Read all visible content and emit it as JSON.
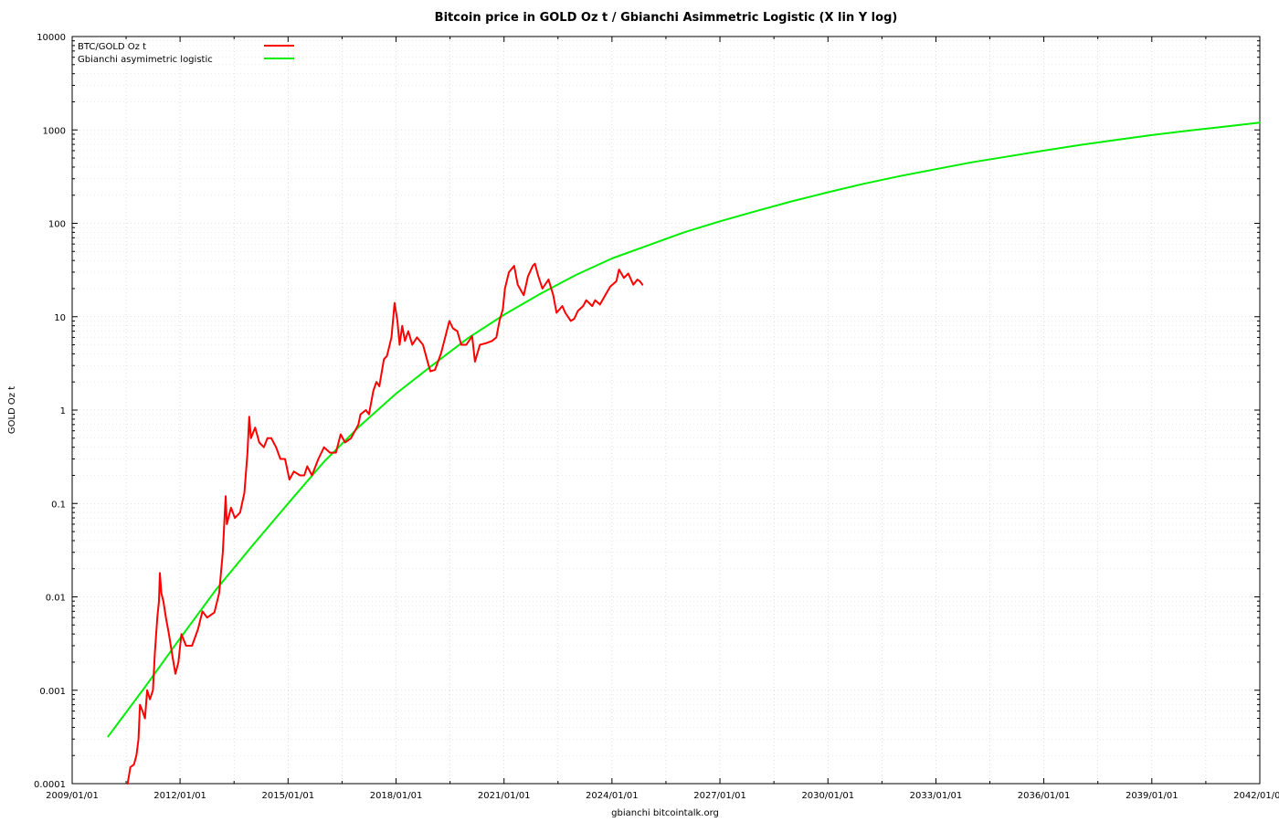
{
  "chart_data": {
    "type": "line",
    "title": "Bitcoin price in GOLD Oz t / Gbianchi Asimmetric Logistic (X lin Y log)",
    "xlabel": "gbianchi bitcointalk.org",
    "ylabel": "GOLD Oz t",
    "y_scale": "log",
    "ylim": [
      0.0001,
      10000
    ],
    "xlim": [
      "2009-01-01",
      "2042-01-01"
    ],
    "grid": true,
    "legend_position": "top-left",
    "x_ticks": [
      "2009/01/01",
      "2012/01/01",
      "2015/01/01",
      "2018/01/01",
      "2021/01/01",
      "2024/01/01",
      "2027/01/01",
      "2030/01/01",
      "2033/01/01",
      "2036/01/01",
      "2039/01/01",
      "2042/01/01"
    ],
    "y_ticks": [
      "0.0001",
      "0.001",
      "0.01",
      "0.1",
      "1",
      "10",
      "100",
      "1000",
      "10000"
    ],
    "series": [
      {
        "name": "BTC/GOLD Oz t",
        "color": "#ff0000",
        "points": [
          [
            "2010-07-18",
            0.0001
          ],
          [
            "2010-08-15",
            0.00015
          ],
          [
            "2010-09-20",
            0.00016
          ],
          [
            "2010-10-15",
            0.0002
          ],
          [
            "2010-11-05",
            0.0003
          ],
          [
            "2010-11-20",
            0.0007
          ],
          [
            "2010-12-15",
            0.0006
          ],
          [
            "2011-01-10",
            0.0005
          ],
          [
            "2011-02-01",
            0.001
          ],
          [
            "2011-03-01",
            0.0008
          ],
          [
            "2011-04-01",
            0.001
          ],
          [
            "2011-04-20",
            0.0025
          ],
          [
            "2011-05-15",
            0.006
          ],
          [
            "2011-06-01",
            0.009
          ],
          [
            "2011-06-10",
            0.018
          ],
          [
            "2011-06-25",
            0.011
          ],
          [
            "2011-07-15",
            0.009
          ],
          [
            "2011-08-10",
            0.006
          ],
          [
            "2011-09-10",
            0.004
          ],
          [
            "2011-10-10",
            0.0025
          ],
          [
            "2011-11-15",
            0.0015
          ],
          [
            "2011-12-15",
            0.002
          ],
          [
            "2012-01-15",
            0.004
          ],
          [
            "2012-03-01",
            0.003
          ],
          [
            "2012-05-01",
            0.003
          ],
          [
            "2012-07-01",
            0.0045
          ],
          [
            "2012-08-15",
            0.007
          ],
          [
            "2012-10-01",
            0.006
          ],
          [
            "2012-12-15",
            0.0068
          ],
          [
            "2013-02-01",
            0.011
          ],
          [
            "2013-03-10",
            0.03
          ],
          [
            "2013-04-08",
            0.12
          ],
          [
            "2013-04-20",
            0.06
          ],
          [
            "2013-06-01",
            0.09
          ],
          [
            "2013-07-10",
            0.07
          ],
          [
            "2013-09-01",
            0.08
          ],
          [
            "2013-10-15",
            0.13
          ],
          [
            "2013-11-15",
            0.35
          ],
          [
            "2013-12-03",
            0.85
          ],
          [
            "2013-12-20",
            0.5
          ],
          [
            "2014-02-01",
            0.65
          ],
          [
            "2014-03-15",
            0.45
          ],
          [
            "2014-05-01",
            0.4
          ],
          [
            "2014-06-05",
            0.5
          ],
          [
            "2014-07-15",
            0.5
          ],
          [
            "2014-09-01",
            0.4
          ],
          [
            "2014-10-15",
            0.3
          ],
          [
            "2014-12-01",
            0.3
          ],
          [
            "2015-01-15",
            0.18
          ],
          [
            "2015-03-01",
            0.22
          ],
          [
            "2015-05-01",
            0.2
          ],
          [
            "2015-06-15",
            0.2
          ],
          [
            "2015-07-15",
            0.25
          ],
          [
            "2015-09-01",
            0.2
          ],
          [
            "2015-11-05",
            0.3
          ],
          [
            "2016-01-01",
            0.4
          ],
          [
            "2016-03-01",
            0.35
          ],
          [
            "2016-05-01",
            0.35
          ],
          [
            "2016-06-18",
            0.55
          ],
          [
            "2016-08-01",
            0.45
          ],
          [
            "2016-10-01",
            0.5
          ],
          [
            "2016-12-15",
            0.7
          ],
          [
            "2017-01-05",
            0.9
          ],
          [
            "2017-03-01",
            1.0
          ],
          [
            "2017-04-01",
            0.9
          ],
          [
            "2017-05-15",
            1.6
          ],
          [
            "2017-06-15",
            2.0
          ],
          [
            "2017-07-15",
            1.8
          ],
          [
            "2017-08-30",
            3.5
          ],
          [
            "2017-10-01",
            3.8
          ],
          [
            "2017-11-15",
            6.0
          ],
          [
            "2017-12-17",
            14.0
          ],
          [
            "2018-01-15",
            9.0
          ],
          [
            "2018-02-06",
            5.0
          ],
          [
            "2018-03-05",
            8.0
          ],
          [
            "2018-04-01",
            5.5
          ],
          [
            "2018-05-05",
            7.0
          ],
          [
            "2018-06-15",
            5.0
          ],
          [
            "2018-08-01",
            6.0
          ],
          [
            "2018-10-01",
            5.0
          ],
          [
            "2018-11-20",
            3.2
          ],
          [
            "2018-12-15",
            2.6
          ],
          [
            "2019-02-01",
            2.7
          ],
          [
            "2019-04-01",
            4.0
          ],
          [
            "2019-05-15",
            6.0
          ],
          [
            "2019-06-26",
            9.0
          ],
          [
            "2019-08-01",
            7.5
          ],
          [
            "2019-09-15",
            7.0
          ],
          [
            "2019-10-25",
            5.0
          ],
          [
            "2019-12-15",
            5.0
          ],
          [
            "2020-02-12",
            6.2
          ],
          [
            "2020-03-12",
            3.3
          ],
          [
            "2020-05-01",
            5.0
          ],
          [
            "2020-07-01",
            5.2
          ],
          [
            "2020-09-01",
            5.5
          ],
          [
            "2020-10-15",
            6.0
          ],
          [
            "2020-11-15",
            9.0
          ],
          [
            "2020-12-20",
            12.0
          ],
          [
            "2021-01-10",
            20.0
          ],
          [
            "2021-02-20",
            30.0
          ],
          [
            "2021-04-14",
            35.0
          ],
          [
            "2021-05-20",
            22.0
          ],
          [
            "2021-07-20",
            17.0
          ],
          [
            "2021-09-01",
            27.0
          ],
          [
            "2021-10-20",
            35.0
          ],
          [
            "2021-11-10",
            37.0
          ],
          [
            "2021-12-15",
            27.0
          ],
          [
            "2022-01-25",
            20.0
          ],
          [
            "2022-03-28",
            25.0
          ],
          [
            "2022-05-15",
            17.0
          ],
          [
            "2022-06-18",
            11.0
          ],
          [
            "2022-08-15",
            13.0
          ],
          [
            "2022-09-15",
            11.0
          ],
          [
            "2022-11-09",
            9.0
          ],
          [
            "2022-12-15",
            9.5
          ],
          [
            "2023-01-20",
            11.5
          ],
          [
            "2023-03-15",
            13.0
          ],
          [
            "2023-04-15",
            15.0
          ],
          [
            "2023-06-15",
            13.0
          ],
          [
            "2023-07-15",
            15.0
          ],
          [
            "2023-09-01",
            13.5
          ],
          [
            "2023-10-25",
            17.0
          ],
          [
            "2023-12-15",
            21.0
          ],
          [
            "2024-02-15",
            24.0
          ],
          [
            "2024-03-13",
            32.0
          ],
          [
            "2024-05-01",
            26.0
          ],
          [
            "2024-06-15",
            29.0
          ],
          [
            "2024-08-05",
            22.0
          ],
          [
            "2024-09-15",
            25.0
          ],
          [
            "2024-10-10",
            24.0
          ],
          [
            "2024-11-05",
            22.0
          ]
        ]
      },
      {
        "name": "Gbianchi asymimetric logistic",
        "color": "#00ee00",
        "points": [
          [
            "2010-01-01",
            0.00032
          ],
          [
            "2011-01-01",
            0.00105
          ],
          [
            "2012-01-01",
            0.0036
          ],
          [
            "2013-01-01",
            0.012
          ],
          [
            "2014-01-01",
            0.035
          ],
          [
            "2015-01-01",
            0.1
          ],
          [
            "2016-01-01",
            0.28
          ],
          [
            "2017-01-01",
            0.68
          ],
          [
            "2018-01-01",
            1.5
          ],
          [
            "2019-01-01",
            3.0
          ],
          [
            "2020-01-01",
            5.9
          ],
          [
            "2021-01-01",
            10.5
          ],
          [
            "2022-01-01",
            17.5
          ],
          [
            "2023-01-01",
            28.0
          ],
          [
            "2024-01-01",
            42.0
          ],
          [
            "2025-01-01",
            58.0
          ],
          [
            "2026-01-01",
            80.0
          ],
          [
            "2027-01-01",
            105.0
          ],
          [
            "2028-01-01",
            135.0
          ],
          [
            "2029-01-01",
            172.0
          ],
          [
            "2030-01-01",
            215.0
          ],
          [
            "2031-01-01",
            265.0
          ],
          [
            "2032-01-01",
            320.0
          ],
          [
            "2033-01-01",
            380.0
          ],
          [
            "2034-01-01",
            450.0
          ],
          [
            "2035-01-01",
            520.0
          ],
          [
            "2036-01-01",
            600.0
          ],
          [
            "2037-01-01",
            690.0
          ],
          [
            "2038-01-01",
            780.0
          ],
          [
            "2039-01-01",
            880.0
          ],
          [
            "2040-01-01",
            980.0
          ],
          [
            "2041-01-01",
            1080.0
          ],
          [
            "2042-01-01",
            1200.0
          ]
        ]
      }
    ]
  }
}
